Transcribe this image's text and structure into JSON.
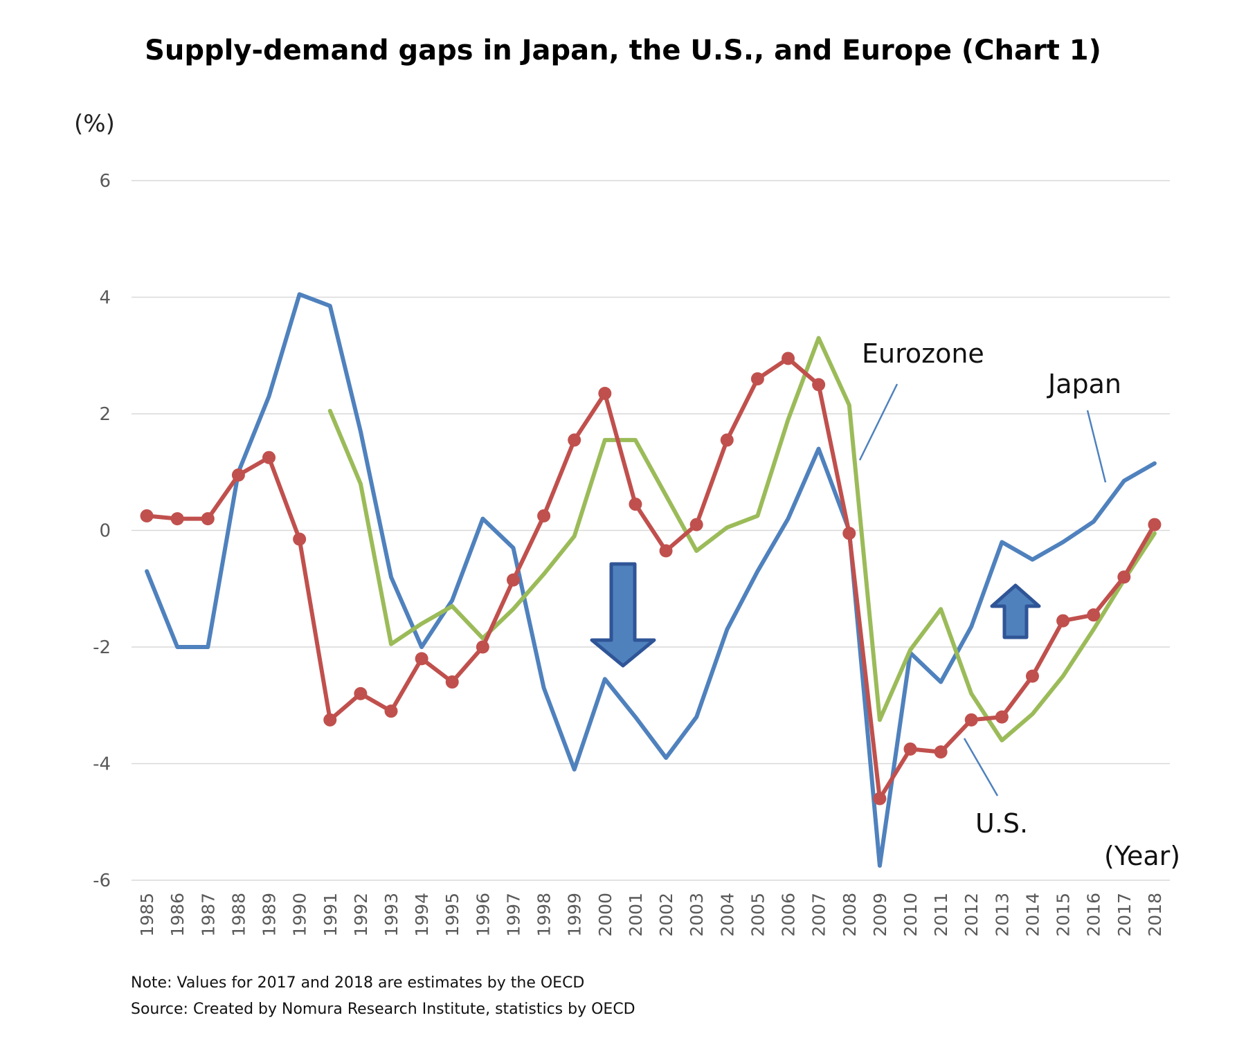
{
  "chart_data": {
    "type": "line",
    "title": "Supply-demand gaps in Japan, the U.S., and Europe (Chart 1)",
    "ylabel": "(%)",
    "xlabel": "(Year)",
    "ylim": [
      -6,
      6
    ],
    "yticks": [
      6,
      4,
      2,
      0,
      -2,
      -4,
      -6
    ],
    "grid": true,
    "categories": [
      "1985",
      "1986",
      "1987",
      "1988",
      "1989",
      "1990",
      "1991",
      "1992",
      "1993",
      "1994",
      "1995",
      "1996",
      "1997",
      "1998",
      "1999",
      "2000",
      "2001",
      "2002",
      "2003",
      "2004",
      "2005",
      "2006",
      "2007",
      "2008",
      "2009",
      "2010",
      "2011",
      "2012",
      "2013",
      "2014",
      "2015",
      "2016",
      "2017",
      "2018"
    ],
    "series": [
      {
        "name": "Japan",
        "color": "#4f81bd",
        "markers": false,
        "values": [
          -0.7,
          -2.0,
          -2.0,
          1.0,
          2.3,
          4.05,
          3.85,
          1.7,
          -0.8,
          -2.0,
          -1.2,
          0.2,
          -0.3,
          -2.7,
          -4.1,
          -2.55,
          -3.2,
          -3.9,
          -3.2,
          -1.7,
          -0.7,
          0.2,
          1.4,
          0.0,
          -5.75,
          -2.1,
          -2.6,
          -1.65,
          -0.2,
          -0.5,
          -0.2,
          0.15,
          0.85,
          1.15
        ]
      },
      {
        "name": "Eurozone",
        "color": "#9bbb59",
        "markers": false,
        "values": [
          null,
          null,
          null,
          null,
          null,
          null,
          2.05,
          0.8,
          -1.95,
          -1.6,
          -1.3,
          -1.85,
          -1.35,
          -0.75,
          -0.1,
          1.55,
          1.55,
          0.6,
          -0.35,
          0.05,
          0.25,
          1.9,
          3.3,
          2.15,
          -3.25,
          -2.05,
          -1.35,
          -2.8,
          -3.6,
          -3.15,
          -2.5,
          -1.7,
          -0.85,
          -0.05
        ]
      },
      {
        "name": "U.S.",
        "color": "#c0504d",
        "markers": true,
        "values": [
          0.25,
          0.2,
          0.2,
          0.95,
          1.25,
          -0.15,
          -3.25,
          -2.8,
          -3.1,
          -2.2,
          -2.6,
          -2.0,
          -0.85,
          0.25,
          1.55,
          2.35,
          0.45,
          -0.35,
          0.1,
          1.55,
          2.6,
          2.95,
          2.5,
          -0.05,
          -4.6,
          -3.75,
          -3.8,
          -3.25,
          -3.2,
          -2.5,
          -1.55,
          -1.45,
          -0.8,
          0.1
        ]
      }
    ],
    "annotations": {
      "eurozone": "Eurozone",
      "japan": "Japan",
      "us": "U.S."
    },
    "notes": {
      "note": "Note: Values for 2017 and 2018 are estimates by the OECD",
      "source": "Source: Created by Nomura Research Institute, statistics by OECD"
    }
  }
}
